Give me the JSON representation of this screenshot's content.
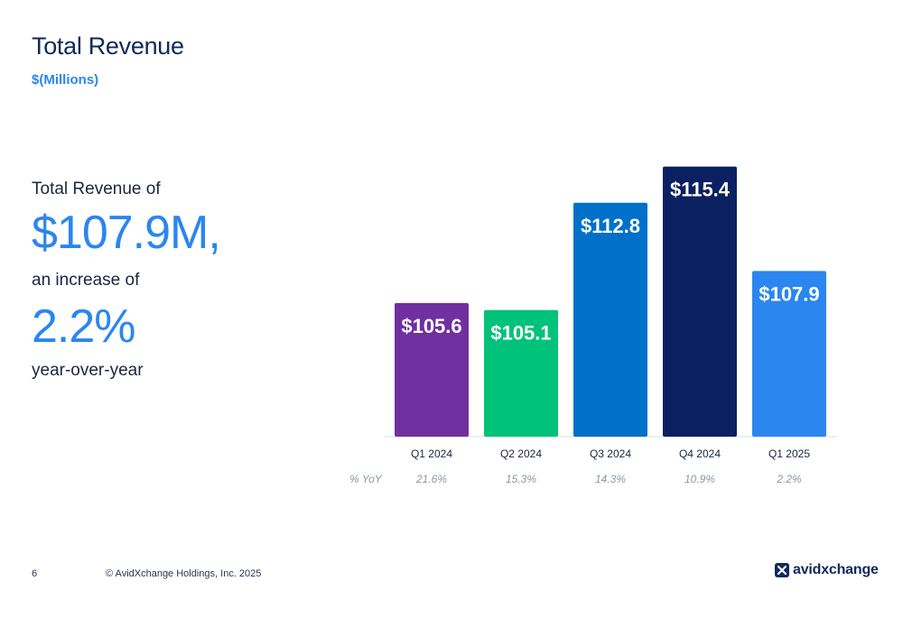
{
  "header": {
    "title": "Total Revenue",
    "subtitle": "$(Millions)"
  },
  "kpi": {
    "line1": "Total Revenue of",
    "value1": "$107.9M,",
    "line2": "an increase of",
    "value2": "2.2%",
    "line3": "year-over-year"
  },
  "chart_data": {
    "type": "bar",
    "categories": [
      "Q1 2024",
      "Q2 2024",
      "Q3 2024",
      "Q4 2024",
      "Q1 2025"
    ],
    "values": [
      105.6,
      105.1,
      112.8,
      115.4,
      107.9
    ],
    "data_labels": [
      "$105.6",
      "$105.1",
      "$112.8",
      "$115.4",
      "$107.9"
    ],
    "bar_colors": [
      "#7030a0",
      "#00c27a",
      "#0070c8",
      "#0b2060",
      "#2b86ef"
    ],
    "yoy_label": "% YoY",
    "yoy_values": [
      "21.6%",
      "15.3%",
      "14.3%",
      "10.9%",
      "2.2%"
    ],
    "ylim": [
      96,
      117
    ],
    "grid": false,
    "legend": "none",
    "title": "",
    "xlabel": "",
    "ylabel": ""
  },
  "footer": {
    "page_number": "6",
    "copyright": "© AvidXchange Holdings, Inc. 2025",
    "logo_text": "avidxchange"
  },
  "colors": {
    "title": "#102a5c",
    "accent": "#2b86ef"
  }
}
